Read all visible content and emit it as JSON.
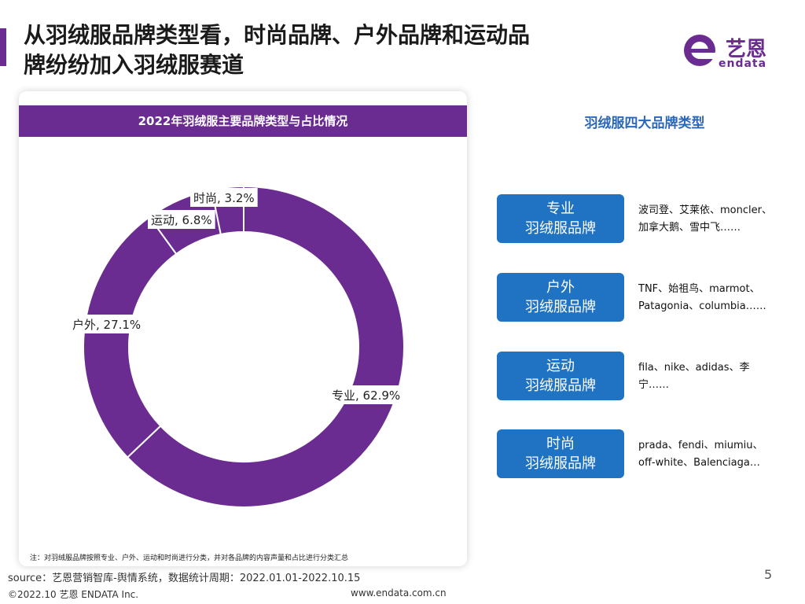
{
  "header": {
    "title_line1": "从羽绒服品牌类型看，时尚品牌、户外品牌和运动品",
    "title_line2": "牌纷纷加入羽绒服赛道",
    "logo_name": "艺恩",
    "logo_sub": "endata"
  },
  "chart_card": {
    "header": "2022年羽绒服主要品牌类型与占比情况",
    "note": "注：对羽绒服品牌按照专业、户外、运动和时尚进行分类，并对各品牌的内容声量和占比进行分类汇总"
  },
  "chart_data": {
    "type": "pie",
    "title": "2022年羽绒服主要品牌类型与占比情况",
    "donut": true,
    "slices": [
      {
        "label": "专业",
        "value": 62.9,
        "display": "专业, 62.9%"
      },
      {
        "label": "户外",
        "value": 27.1,
        "display": "户外, 27.1%"
      },
      {
        "label": "运动",
        "value": 6.8,
        "display": "运动, 6.8%"
      },
      {
        "label": "时尚",
        "value": 3.2,
        "display": "时尚, 3.2%"
      }
    ],
    "color": "#6b2c91"
  },
  "brand_types": {
    "title": "羽绒服四大品牌类型",
    "items": [
      {
        "line1": "专业",
        "line2": "羽绒服品牌",
        "desc_line1": "波司登、艾莱依、moncler、",
        "desc_line2": "加拿大鹅、雪中飞……"
      },
      {
        "line1": "户外",
        "line2": "羽绒服品牌",
        "desc_line1": "TNF、始祖鸟、marmot、",
        "desc_line2": "Patagonia、columbia……"
      },
      {
        "line1": "运动",
        "line2": "羽绒服品牌",
        "desc_line1": "fila、nike、adidas、李",
        "desc_line2": "宁……"
      },
      {
        "line1": "时尚",
        "line2": "羽绒服品牌",
        "desc_line1": "prada、fendi、miumiu、",
        "desc_line2": "off-white、Balenciaga…"
      }
    ]
  },
  "footer": {
    "source": "source：艺恩营销智库-舆情系统，数据统计周期：2022.01.01-2022.10.15",
    "copyright": "©2022.10 艺恩 ENDATA Inc.",
    "website": "www.endata.com.cn",
    "page": "5"
  }
}
